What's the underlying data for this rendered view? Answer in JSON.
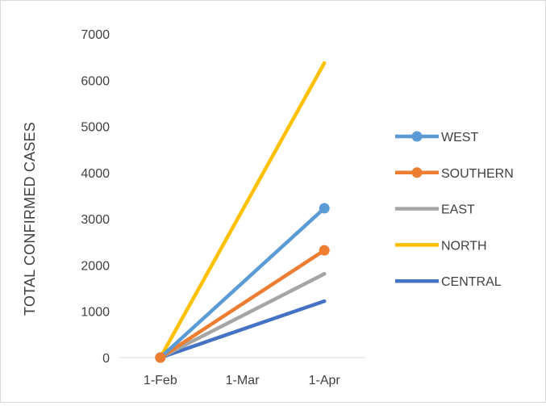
{
  "chart_data": {
    "type": "line",
    "title": "",
    "xlabel": "",
    "ylabel": "TOTAL CONFIRMED CASES",
    "categories": [
      "1-Feb",
      "1-Mar",
      "1-Apr"
    ],
    "ylim": [
      0,
      7000
    ],
    "yticks": [
      "0",
      "1000",
      "2000",
      "3000",
      "4000",
      "5000",
      "6000",
      "7000"
    ],
    "grid": false,
    "legend_position": "right",
    "series": [
      {
        "name": "WEST",
        "color": "#5B9BD5",
        "markers": true,
        "points": [
          {
            "x": "1-Feb",
            "y": 0
          },
          {
            "x": "1-Apr",
            "y": 3230
          }
        ]
      },
      {
        "name": "SOUTHERN",
        "color": "#ED7D31",
        "markers": true,
        "points": [
          {
            "x": "1-Feb",
            "y": 0
          },
          {
            "x": "1-Apr",
            "y": 2320
          }
        ]
      },
      {
        "name": "EAST",
        "color": "#A5A5A5",
        "markers": false,
        "points": [
          {
            "x": "1-Feb",
            "y": 0
          },
          {
            "x": "1-Apr",
            "y": 1810
          }
        ]
      },
      {
        "name": "NORTH",
        "color": "#FFC000",
        "markers": false,
        "points": [
          {
            "x": "1-Feb",
            "y": 0
          },
          {
            "x": "1-Apr",
            "y": 6370
          }
        ]
      },
      {
        "name": "CENTRAL",
        "color": "#4472C4",
        "markers": false,
        "points": [
          {
            "x": "1-Feb",
            "y": 0
          },
          {
            "x": "1-Apr",
            "y": 1220
          }
        ]
      }
    ]
  }
}
